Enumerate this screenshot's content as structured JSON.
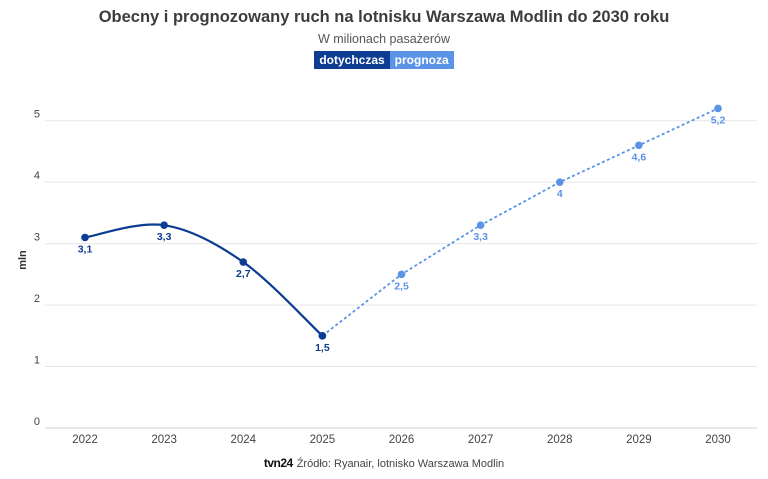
{
  "chart_data": {
    "type": "line",
    "title": "Obecny i prognozowany ruch na lotnisku Warszawa Modlin do 2030 roku",
    "subtitle": "W milionach pasażerów",
    "ylabel": "mln",
    "xlabel": "",
    "ylim": [
      0,
      5.5
    ],
    "yticks": [
      "0",
      "1",
      "2",
      "3",
      "4",
      "5"
    ],
    "categories": [
      "2022",
      "2023",
      "2024",
      "2025",
      "2026",
      "2027",
      "2028",
      "2029",
      "2030"
    ],
    "series": [
      {
        "name": "dotychczas",
        "color": "#0d3d92",
        "style": "solid",
        "x": [
          "2022",
          "2023",
          "2024",
          "2025"
        ],
        "values": [
          3.1,
          3.3,
          2.7,
          1.5
        ],
        "labels": [
          "3,1",
          "3,3",
          "2,7",
          "1,5"
        ]
      },
      {
        "name": "prognoza",
        "color": "#5b94e6",
        "style": "dotted",
        "x": [
          "2025",
          "2026",
          "2027",
          "2028",
          "2029",
          "2030"
        ],
        "values": [
          1.5,
          2.5,
          3.3,
          4.0,
          4.6,
          5.2
        ],
        "labels": [
          "",
          "2,5",
          "3,3",
          "4",
          "4,6",
          "5,2"
        ]
      }
    ],
    "grid": true,
    "legend_position": "top-center"
  },
  "legend": {
    "history": "dotychczas",
    "forecast": "prognoza"
  },
  "footer": {
    "brand": "tvn24",
    "source": "Źródło: Ryanair, lotnisko Warszawa Modlin"
  }
}
